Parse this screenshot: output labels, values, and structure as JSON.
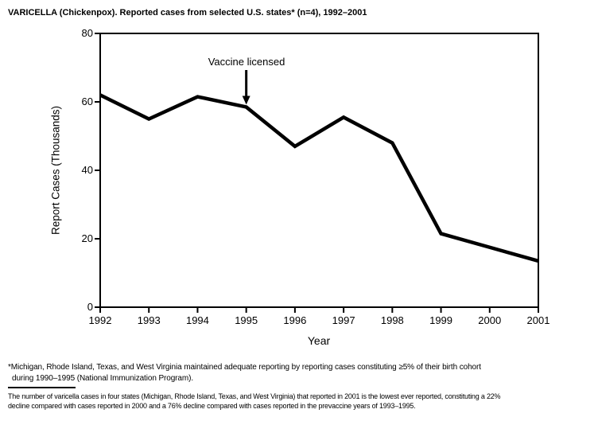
{
  "page": {
    "background_color": "#ffffff",
    "foreground_color": "#000000"
  },
  "title": "VARICELLA (Chickenpox). Reported cases from selected U.S. states* (n=4), 1992–2001",
  "chart_data": {
    "type": "line",
    "title": "VARICELLA (Chickenpox). Reported cases from selected U.S. states* (n=4), 1992–2001",
    "categories": [
      "1992",
      "1993",
      "1994",
      "1995",
      "1996",
      "1997",
      "1998",
      "1999",
      "2000",
      "2001"
    ],
    "series": [
      {
        "name": "Reported varicella cases (thousands)",
        "values": [
          62,
          55,
          61.5,
          58.5,
          47,
          55.5,
          48,
          21.5,
          17.5,
          13.5
        ]
      }
    ],
    "xlabel": "Year",
    "ylabel": "Report Cases (Thousands)",
    "ylim": [
      0,
      80
    ],
    "y_ticks": [
      0,
      20,
      40,
      60,
      80
    ],
    "grid": false,
    "legend": false,
    "line_color": "#000000",
    "line_width": 4.5,
    "annotation": {
      "text": "Vaccine licensed",
      "x": "1995",
      "arrow": "down"
    }
  },
  "footnote": {
    "lines": [
      "*Michigan, Rhode Island, Texas, and West Virginia maintained adequate reporting by reporting cases constituting ≥5% of their birth cohort",
      "during 1990–1995 (National Immunization Program)."
    ]
  },
  "bottom_note": {
    "lines": [
      "The number of varicella cases in four states (Michigan, Rhode Island, Texas, and West Virginia) that reported in 2001 is the lowest ever reported, constituting a 22%",
      "decline compared with cases reported in 2000 and a 76% decline compared with cases reported in the prevaccine years of 1993–1995."
    ]
  }
}
